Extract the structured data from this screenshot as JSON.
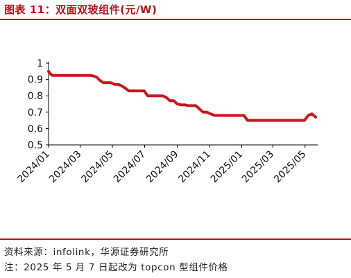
{
  "header": {
    "title": "图表 11：双面双玻组件(元/W)"
  },
  "footer": {
    "source": "资料来源：infolink，华源证券研究所",
    "note": "注：2025 年 5 月 7 日起改为 topcon 型组件价格"
  },
  "colors": {
    "title": "#b5121b",
    "line": "#c8161d",
    "rule": "#b5121b",
    "axis": "#000000"
  },
  "chart_data": {
    "type": "line",
    "title": "双面双玻组件(元/W)",
    "xlabel": "",
    "ylabel": "",
    "ylim": [
      0.5,
      1.0
    ],
    "yticks": [
      0.5,
      0.6,
      0.7,
      0.8,
      0.9,
      1.0
    ],
    "ytick_labels": [
      "0.5",
      "0.6",
      "0.7",
      "0.8",
      "0.9",
      "1"
    ],
    "xlim": [
      "2024-01-01",
      "2025-05-25"
    ],
    "xticks": [
      "2024-01-01",
      "2024-03-01",
      "2024-05-01",
      "2024-07-01",
      "2024-09-01",
      "2024-11-01",
      "2025-01-01",
      "2025-03-01",
      "2025-05-01"
    ],
    "xtick_labels": [
      "2024/01",
      "2024/03",
      "2024/05",
      "2024/07",
      "2024/09",
      "2024/11",
      "2025/01",
      "2025/03",
      "2025/05"
    ],
    "grid": false,
    "legend": "none",
    "series": [
      {
        "x": [
          "2024-01-01",
          "2024-01-04",
          "2024-01-08",
          "2024-01-15",
          "2024-02-01",
          "2024-03-01",
          "2024-03-21",
          "2024-04-01",
          "2024-04-07",
          "2024-04-14",
          "2024-04-21",
          "2024-04-28",
          "2024-05-05",
          "2024-05-12",
          "2024-05-19",
          "2024-05-26",
          "2024-06-01",
          "2024-06-09",
          "2024-06-16",
          "2024-06-23",
          "2024-06-30",
          "2024-07-07",
          "2024-07-14",
          "2024-07-21",
          "2024-07-28",
          "2024-08-04",
          "2024-08-11",
          "2024-08-18",
          "2024-08-25",
          "2024-09-01",
          "2024-09-08",
          "2024-09-15",
          "2024-09-22",
          "2024-09-29",
          "2024-10-06",
          "2024-10-13",
          "2024-10-20",
          "2024-10-27",
          "2024-11-03",
          "2024-11-10",
          "2024-11-24",
          "2024-12-08",
          "2024-12-22",
          "2025-01-05",
          "2025-01-12",
          "2025-01-26",
          "2025-02-09",
          "2025-02-23",
          "2025-03-09",
          "2025-03-23",
          "2025-04-06",
          "2025-04-20",
          "2025-04-30",
          "2025-05-07",
          "2025-05-14",
          "2025-05-21"
        ],
        "y": [
          0.95,
          0.935,
          0.925,
          0.925,
          0.925,
          0.925,
          0.925,
          0.915,
          0.895,
          0.88,
          0.88,
          0.88,
          0.87,
          0.87,
          0.86,
          0.845,
          0.83,
          0.83,
          0.83,
          0.83,
          0.83,
          0.8,
          0.8,
          0.8,
          0.8,
          0.8,
          0.79,
          0.77,
          0.77,
          0.75,
          0.745,
          0.745,
          0.74,
          0.74,
          0.74,
          0.72,
          0.7,
          0.7,
          0.69,
          0.68,
          0.68,
          0.68,
          0.68,
          0.68,
          0.65,
          0.65,
          0.65,
          0.65,
          0.65,
          0.65,
          0.65,
          0.65,
          0.65,
          0.68,
          0.69,
          0.67
        ]
      }
    ]
  }
}
